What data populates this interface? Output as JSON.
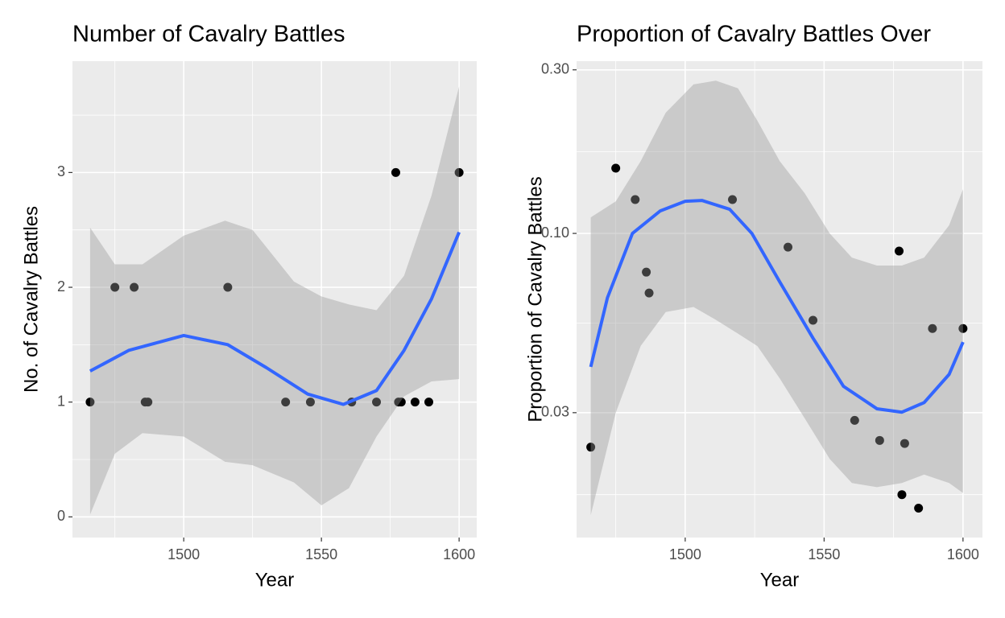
{
  "chart_data": [
    {
      "type": "scatter",
      "title": "Number of Cavalry Battles",
      "x_label": "Year",
      "y_label": "No. of Cavalry Battles",
      "xlim": [
        1459.6,
        1606.4
      ],
      "ylim": [
        -0.18,
        3.97
      ],
      "xticks": [
        1500,
        1550,
        1600
      ],
      "yticks": [
        0,
        1,
        2,
        3
      ],
      "x_minor_ticks": [
        1475,
        1525,
        1575
      ],
      "y_minor_ticks": [
        0.5,
        1.5,
        2.5,
        3.5
      ],
      "y_log": false,
      "grid": true,
      "color": "#000000",
      "x": [
        1466,
        1475,
        1482,
        1486,
        1487,
        1516,
        1537,
        1546,
        1561,
        1570,
        1577,
        1578,
        1579,
        1584,
        1589,
        1600
      ],
      "values": [
        1,
        2,
        2,
        1,
        1,
        2,
        1,
        1,
        1,
        1,
        3,
        1,
        1,
        1,
        1,
        3
      ],
      "smooth": {
        "color": "#3366ff",
        "x": [
          1466,
          1480,
          1500,
          1516,
          1530,
          1545,
          1558,
          1570,
          1580,
          1590,
          1600
        ],
        "values": [
          1.27,
          1.45,
          1.58,
          1.5,
          1.3,
          1.07,
          0.98,
          1.1,
          1.45,
          1.9,
          2.48
        ]
      },
      "ribbon": {
        "color": "#999999",
        "x": [
          1466,
          1475,
          1485,
          1500,
          1515,
          1525,
          1540,
          1550,
          1560,
          1570,
          1580,
          1590,
          1600
        ],
        "upper": [
          2.52,
          2.2,
          2.2,
          2.45,
          2.58,
          2.5,
          2.05,
          1.92,
          1.85,
          1.8,
          2.1,
          2.8,
          3.75
        ],
        "lower": [
          0.02,
          0.55,
          0.73,
          0.7,
          0.48,
          0.45,
          0.3,
          0.1,
          0.25,
          0.7,
          1.05,
          1.18,
          1.2
        ]
      }
    },
    {
      "type": "scatter",
      "title": "Proportion of Cavalry Battles Over",
      "x_label": "Year",
      "y_label": "Proportion of Cavalry Battles",
      "xlim": [
        1460.9,
        1607
      ],
      "ylim": [
        0.01297,
        0.318
      ],
      "xticks": [
        1500,
        1550,
        1600
      ],
      "yticks": [
        0.03,
        {
          "value": 0.1,
          "label": "0.10"
        },
        {
          "value": 0.3,
          "label": "0.30"
        }
      ],
      "x_minor_ticks": [
        1475,
        1525,
        1575
      ],
      "y_minor_ticks": [
        0.0173,
        0.0548,
        0.173
      ],
      "y_log": true,
      "grid": true,
      "color": "#000000",
      "x": [
        1466,
        1475,
        1482,
        1486,
        1487,
        1517,
        1537,
        1546,
        1561,
        1570,
        1577,
        1578,
        1579,
        1584,
        1589,
        1600
      ],
      "values": [
        0.0238,
        0.155,
        0.1255,
        0.0771,
        0.067,
        0.1255,
        0.0912,
        0.0558,
        0.0285,
        0.0249,
        0.0888,
        0.0173,
        0.0244,
        0.0158,
        0.0528,
        0.0528
      ],
      "smooth": {
        "color": "#3366ff",
        "x": [
          1466,
          1472,
          1481,
          1491,
          1500,
          1506,
          1516,
          1524,
          1534,
          1546,
          1557,
          1569,
          1578,
          1586,
          1595,
          1600
        ],
        "values": [
          0.0408,
          0.0649,
          0.1,
          0.1163,
          0.1241,
          0.1248,
          0.1176,
          0.1,
          0.0723,
          0.0495,
          0.0358,
          0.0308,
          0.0301,
          0.0321,
          0.0388,
          0.0482
        ]
      },
      "ribbon": {
        "color": "#999999",
        "x": [
          1466,
          1475,
          1484,
          1493,
          1503,
          1511,
          1519,
          1526,
          1534,
          1543,
          1552,
          1560,
          1569,
          1578,
          1586,
          1595,
          1600
        ],
        "upper": [
          0.1114,
          0.124,
          0.1626,
          0.225,
          0.272,
          0.279,
          0.265,
          0.213,
          0.1626,
          0.131,
          0.1,
          0.085,
          0.0806,
          0.0806,
          0.085,
          0.1056,
          0.1346
        ],
        "lower": [
          0.01508,
          0.03,
          0.047,
          0.059,
          0.061,
          0.056,
          0.051,
          0.0469,
          0.0378,
          0.0289,
          0.022,
          0.0187,
          0.0182,
          0.0187,
          0.0198,
          0.0187,
          0.0175
        ]
      }
    }
  ]
}
